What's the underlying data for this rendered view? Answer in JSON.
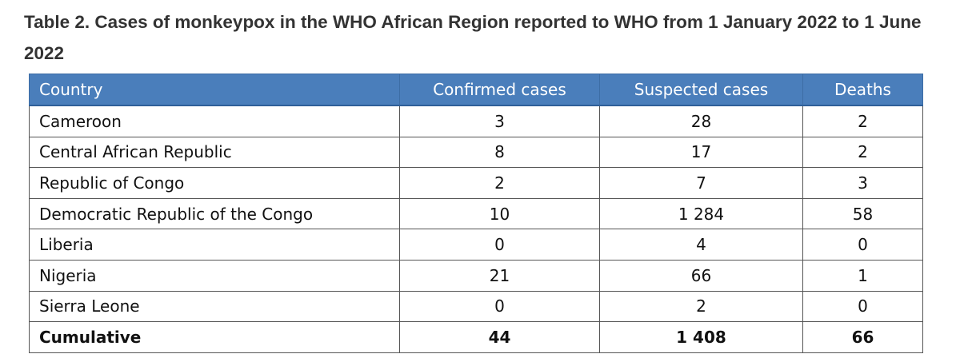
{
  "caption": "Table 2. Cases of monkeypox in the WHO African Region reported to WHO from 1 January 2022 to 1 June 2022",
  "header_color": "#4a7ebb",
  "columns": [
    "Country",
    "Confirmed cases",
    "Suspected cases",
    "Deaths"
  ],
  "rows": [
    [
      "Cameroon",
      "3",
      "28",
      "2"
    ],
    [
      "Central African Republic",
      "8",
      "17",
      "2"
    ],
    [
      "Republic of Congo",
      "2",
      "7",
      "3"
    ],
    [
      "Democratic Republic of the Congo",
      "10",
      "1 284",
      "58"
    ],
    [
      "Liberia",
      "0",
      "4",
      "0"
    ],
    [
      "Nigeria",
      "21",
      "66",
      "1"
    ],
    [
      "Sierra Leone",
      "0",
      "2",
      "0"
    ]
  ],
  "total": [
    "Cumulative",
    "44",
    "1 408",
    "66"
  ]
}
